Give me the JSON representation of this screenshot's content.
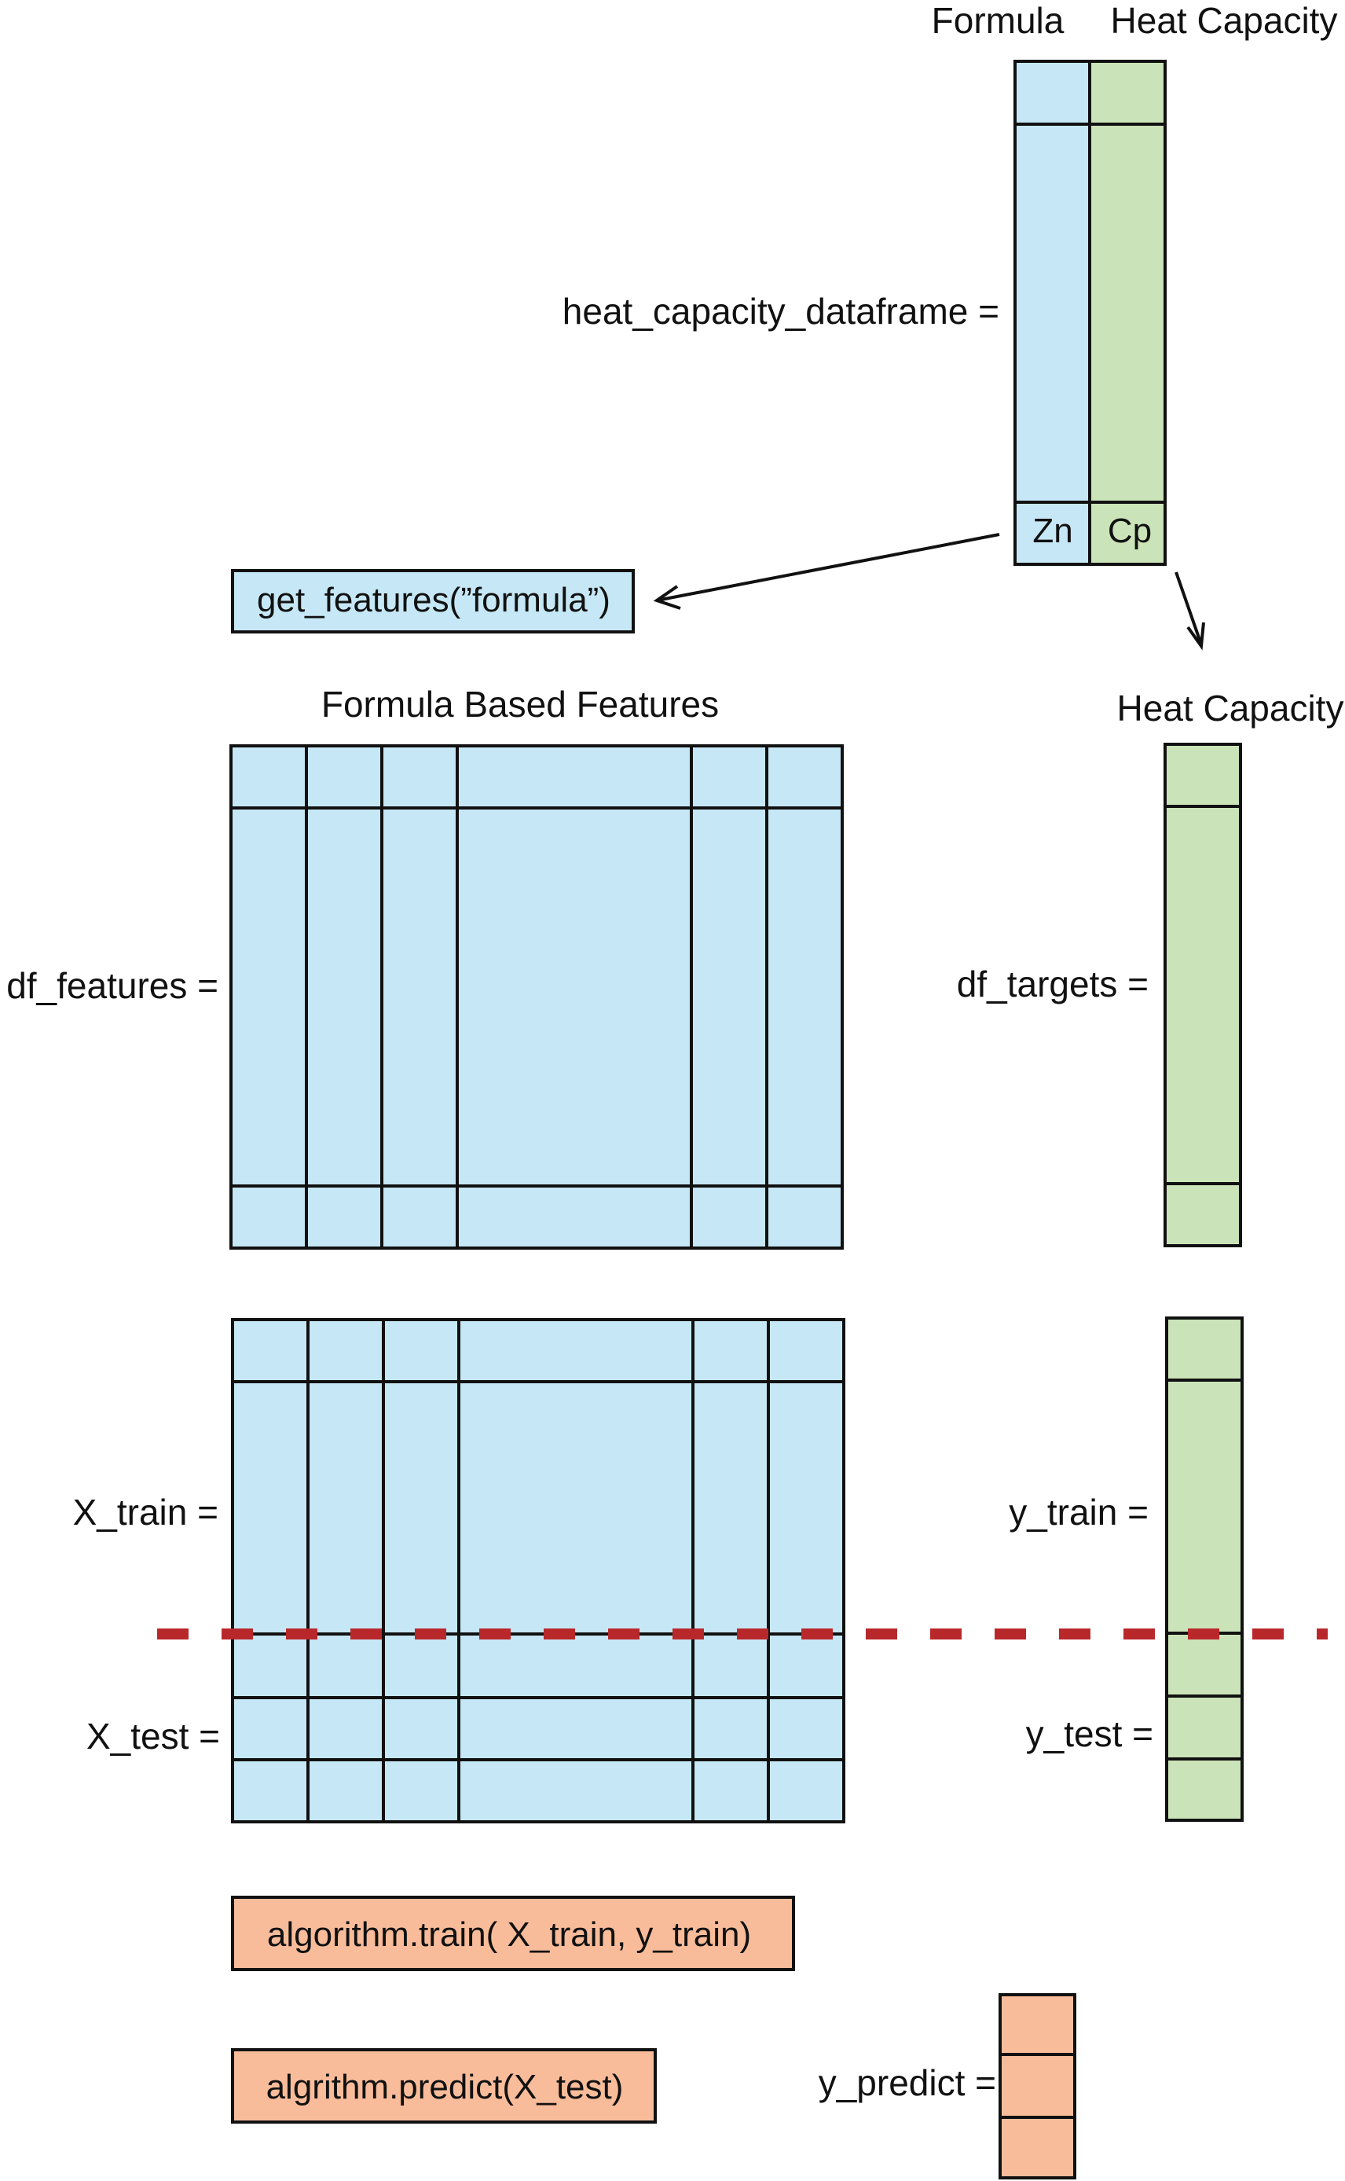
{
  "top_table": {
    "header_formula": "Formula",
    "header_heat_capacity": "Heat Capacity",
    "assign_label": "heat_capacity_dataframe =",
    "cell_formula": "Zn",
    "cell_cp": "Cp"
  },
  "get_features_call": "get_features(”formula”)",
  "features": {
    "title": "Formula Based Features",
    "assign_label": "df_features ="
  },
  "targets": {
    "title": "Heat Capacity",
    "assign_label": "df_targets ="
  },
  "split": {
    "x_train_label": "X_train =",
    "x_test_label": "X_test =",
    "y_train_label": "y_train =",
    "y_test_label": "y_test ="
  },
  "train_call": "algorithm.train( X_train, y_train)",
  "predict_call": "algrithm.predict(X_test)",
  "predict_assign_label": "y_predict =",
  "colors": {
    "formula_fill": "#c6e7f5",
    "target_fill": "#cbe3b8",
    "call_fill": "#f9bc9a",
    "split_line": "#b8282b",
    "stroke": "#111111"
  }
}
